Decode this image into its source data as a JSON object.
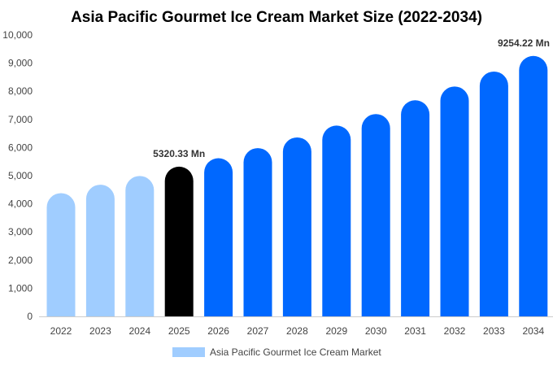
{
  "chart_data": {
    "type": "bar",
    "title": "Asia Pacific Gourmet Ice Cream Market Size (2022-2034)",
    "categories": [
      "2022",
      "2023",
      "2024",
      "2025",
      "2026",
      "2027",
      "2028",
      "2029",
      "2030",
      "2031",
      "2032",
      "2033",
      "2034"
    ],
    "series": [
      {
        "name": "Asia Pacific Gourmet Ice Cream Market",
        "values": [
          4380,
          4680,
          4990,
          5320.33,
          5620,
          5980,
          6360,
          6780,
          7190,
          7680,
          8170,
          8700,
          9254.22
        ]
      }
    ],
    "ylim": [
      0,
      10000
    ],
    "yticks": [
      "0",
      "1,000",
      "2,000",
      "3,000",
      "4,000",
      "5,000",
      "6,000",
      "7,000",
      "8,000",
      "9,000",
      "10,000"
    ],
    "data_labels": [
      {
        "index": 3,
        "text": "5320.33 Mn"
      },
      {
        "index": 12,
        "text": "9254.22 Mn"
      }
    ],
    "colors": {
      "historical": "#a0cdff",
      "base_year": "#000000",
      "forecast": "#0068ff",
      "legend": "#a0cdff"
    },
    "color_groups": [
      "historical",
      "historical",
      "historical",
      "base_year",
      "forecast",
      "forecast",
      "forecast",
      "forecast",
      "forecast",
      "forecast",
      "forecast",
      "forecast",
      "forecast"
    ],
    "grid": false,
    "legend_position": "bottom"
  }
}
